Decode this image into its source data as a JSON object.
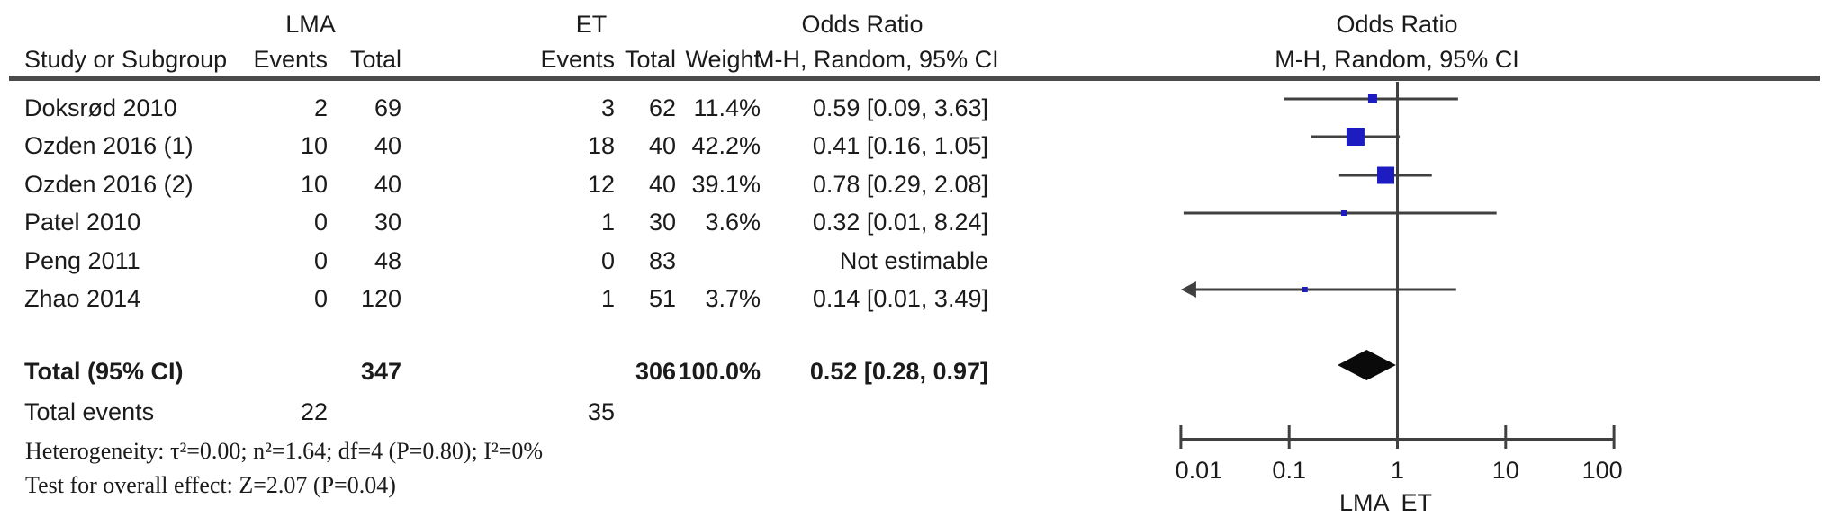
{
  "header": {
    "group1": "LMA",
    "group2": "ET",
    "col_study": "Study or Subgroup",
    "col_events1": "Events",
    "col_total1": "Total",
    "col_events2": "Events",
    "col_total2": "Total",
    "col_weight": "Weight",
    "or_label_left": "Odds Ratio",
    "method_label_left": "M-H, Random, 95% CI",
    "or_label_right": "Odds Ratio",
    "method_label_right": "M-H, Random, 95% CI"
  },
  "rows": [
    {
      "study": "Doksrød 2010",
      "e1": "2",
      "t1": "69",
      "e2": "3",
      "t2": "62",
      "weight": "11.4%",
      "or_ci": "0.59 [0.09, 3.63]"
    },
    {
      "study": "Ozden 2016 (1)",
      "e1": "10",
      "t1": "40",
      "e2": "18",
      "t2": "40",
      "weight": "42.2%",
      "or_ci": "0.41 [0.16, 1.05]"
    },
    {
      "study": "Ozden 2016 (2)",
      "e1": "10",
      "t1": "40",
      "e2": "12",
      "t2": "40",
      "weight": "39.1%",
      "or_ci": "0.78 [0.29, 2.08]"
    },
    {
      "study": "Patel 2010",
      "e1": "0",
      "t1": "30",
      "e2": "1",
      "t2": "30",
      "weight": "3.6%",
      "or_ci": "0.32 [0.01, 8.24]"
    },
    {
      "study": "Peng 2011",
      "e1": "0",
      "t1": "48",
      "e2": "0",
      "t2": "83",
      "weight": "",
      "or_ci": "Not estimable"
    },
    {
      "study": "Zhao 2014",
      "e1": "0",
      "t1": "120",
      "e2": "1",
      "t2": "51",
      "weight": "3.7%",
      "or_ci": "0.14 [0.01, 3.49]"
    }
  ],
  "totals": {
    "label": "Total (95% CI)",
    "t1": "347",
    "t2": "306",
    "weight": "100.0%",
    "or_ci": "0.52 [0.28, 0.97]",
    "events_label": "Total events",
    "e1": "22",
    "e2": "35"
  },
  "footer": {
    "heterogeneity": "Heterogeneity: τ²=0.00; n²=1.64; df=4 (P=0.80); I²=0%",
    "overall_effect": "Test for overall effect: Z=2.07 (P=0.04)"
  },
  "chart_data": {
    "type": "forest",
    "x_scale": "log10",
    "xlim": [
      0.01,
      100
    ],
    "ticks": [
      0.01,
      0.1,
      1,
      10,
      100
    ],
    "tick_labels": [
      "0.01",
      "0.1",
      "1",
      "10",
      "100"
    ],
    "favours_left": "LMA",
    "favours_right": "ET",
    "studies": [
      {
        "name": "Doksrød 2010",
        "or": 0.59,
        "ci_low": 0.09,
        "ci_high": 3.63,
        "weight_pct": 11.4,
        "arrow_low": false
      },
      {
        "name": "Ozden 2016 (1)",
        "or": 0.41,
        "ci_low": 0.16,
        "ci_high": 1.05,
        "weight_pct": 42.2,
        "arrow_low": false
      },
      {
        "name": "Ozden 2016 (2)",
        "or": 0.78,
        "ci_low": 0.29,
        "ci_high": 2.08,
        "weight_pct": 39.1,
        "arrow_low": false
      },
      {
        "name": "Patel 2010",
        "or": 0.32,
        "ci_low": 0.01,
        "ci_high": 8.24,
        "weight_pct": 3.6,
        "arrow_low": false
      },
      {
        "name": "Peng 2011",
        "or": null,
        "not_estimable": true
      },
      {
        "name": "Zhao 2014",
        "or": 0.14,
        "ci_low": 0.01,
        "ci_high": 3.49,
        "weight_pct": 3.7,
        "arrow_low": true
      }
    ],
    "diamond": {
      "or": 0.52,
      "ci_low": 0.28,
      "ci_high": 0.97
    },
    "colors": {
      "square": "#1c1cc0",
      "line": "#404040",
      "diamond": "#0a0a0a",
      "axis": "#404040"
    }
  }
}
